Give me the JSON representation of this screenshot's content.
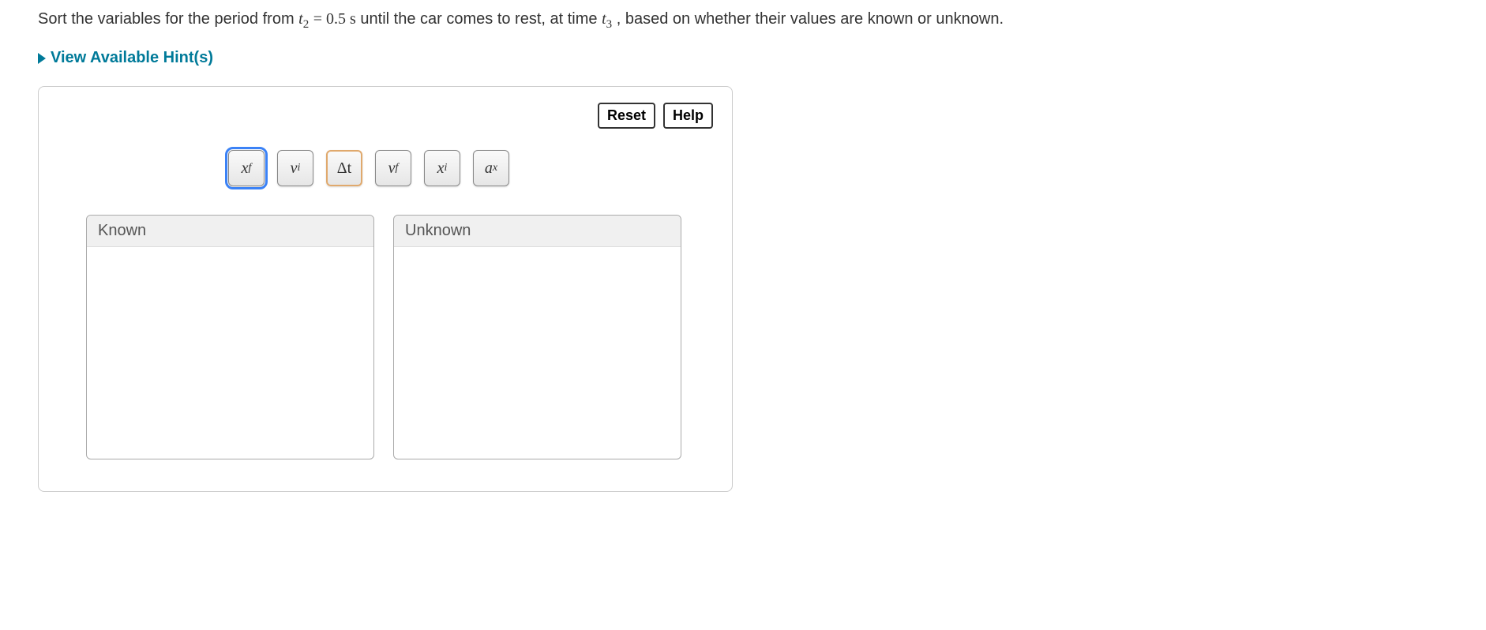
{
  "instruction": {
    "prefix": "Sort the variables for the period from ",
    "t2_var": "t",
    "t2_sub": "2",
    "eq_val": " = 0.5 s",
    "mid": " until the car comes to rest, at time ",
    "t3_var": "t",
    "t3_sub": "3",
    "suffix": ", based on whether their values are known or unknown."
  },
  "hints": {
    "label": "View Available Hint(s)"
  },
  "buttons": {
    "reset": "Reset",
    "help": "Help"
  },
  "chips": [
    {
      "base": "x",
      "sub": "f",
      "state": "selected"
    },
    {
      "base": "v",
      "sub": "i",
      "state": "normal"
    },
    {
      "base": "Δt",
      "sub": "",
      "state": "alt"
    },
    {
      "base": "v",
      "sub": "f",
      "state": "normal"
    },
    {
      "base": "x",
      "sub": "i",
      "state": "normal"
    },
    {
      "base": "a",
      "sub": "x",
      "state": "normal"
    }
  ],
  "bins": {
    "known": "Known",
    "unknown": "Unknown"
  }
}
